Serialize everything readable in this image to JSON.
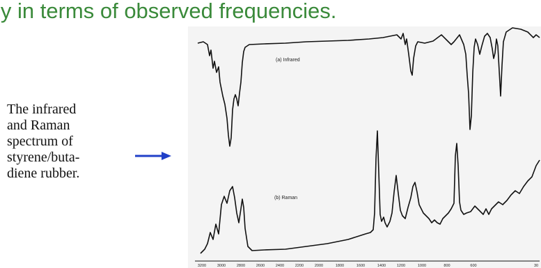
{
  "slide": {
    "title": "ly in terms of observed frequencies.",
    "caption_lines": [
      "The infrared",
      "and Raman",
      "spectrum of",
      "styrene/buta-",
      "diene rubber."
    ]
  },
  "figure": {
    "infrared_label": "(a) Infrared",
    "raman_label": "(b) Raman",
    "x_ticks": [
      "3200",
      "3000",
      "2800",
      "2600",
      "2400",
      "2200",
      "2000",
      "1800",
      "1600",
      "1400",
      "1200",
      "1000",
      "800",
      "600",
      "30"
    ]
  },
  "colors": {
    "title": "#3a8a3a",
    "arrow": "#2040c8",
    "trace": "#111111"
  }
}
